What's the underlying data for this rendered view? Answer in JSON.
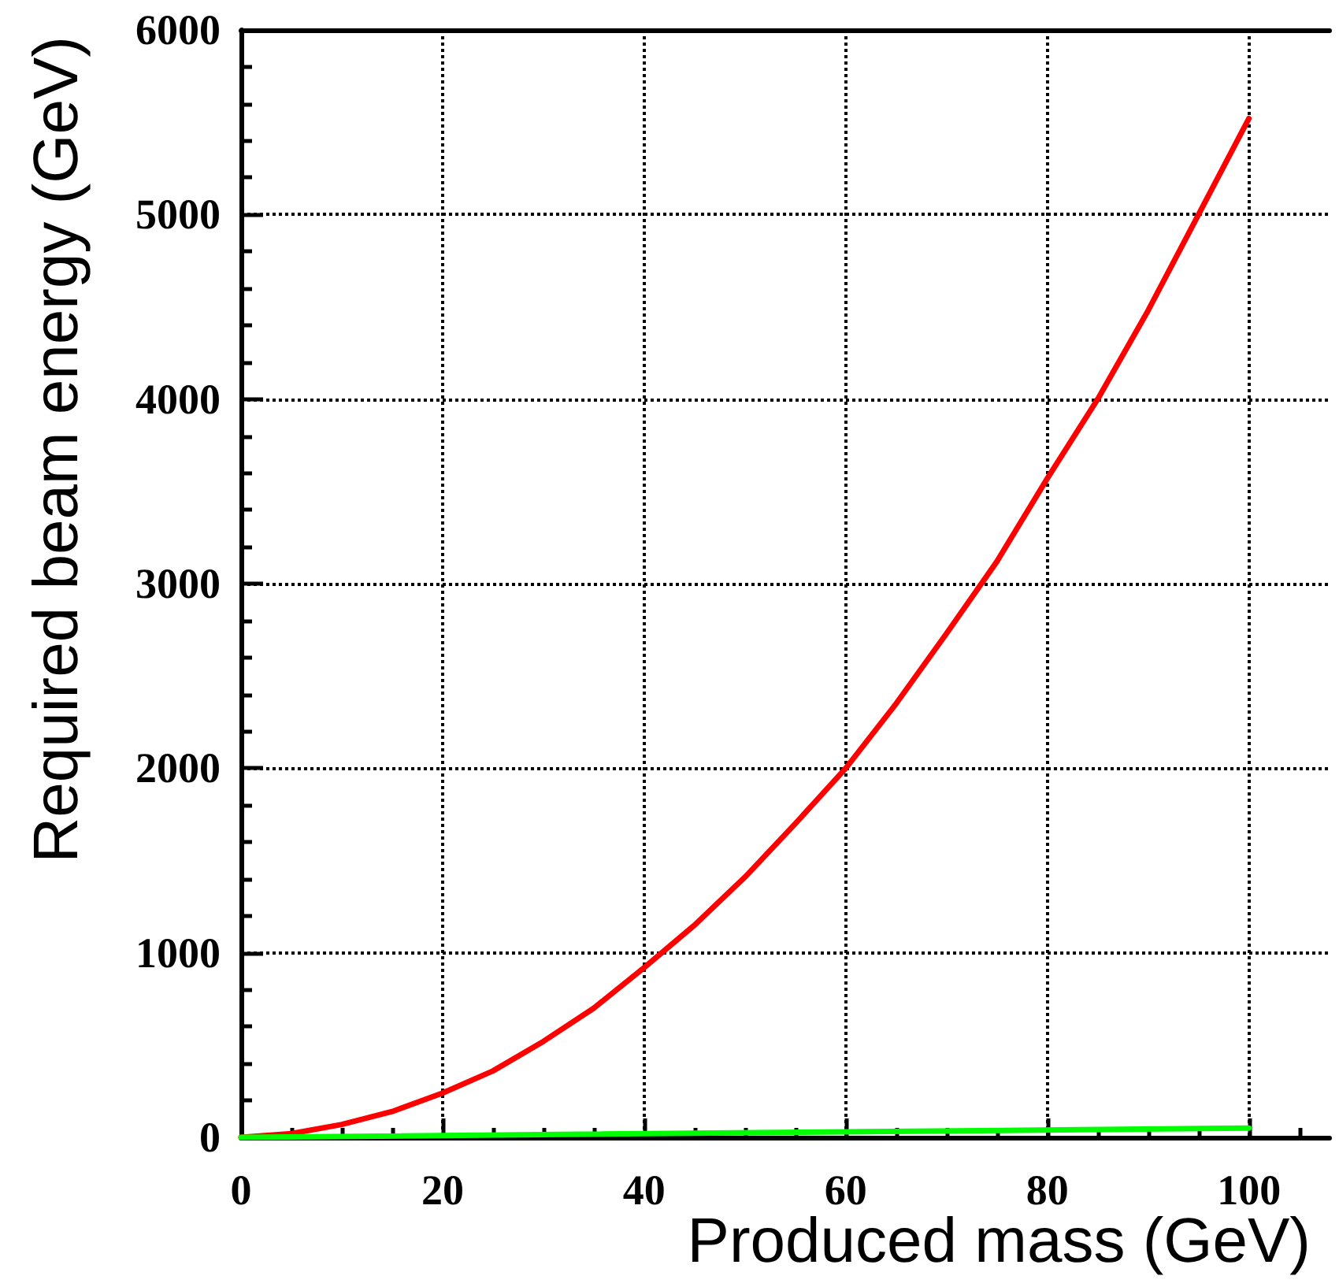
{
  "chart_data": {
    "type": "line",
    "xlabel": "Produced mass (GeV)",
    "ylabel": "Required beam energy (GeV)",
    "x": [
      0,
      5,
      10,
      15,
      20,
      25,
      30,
      35,
      40,
      45,
      50,
      55,
      60,
      65,
      70,
      75,
      80,
      85,
      90,
      95,
      100
    ],
    "series": [
      {
        "color": "#ff0000",
        "values": [
          0,
          20,
          70,
          140,
          240,
          360,
          520,
          700,
          920,
          1150,
          1410,
          1700,
          2000,
          2350,
          2730,
          3120,
          3570,
          4000,
          4480,
          5000,
          5520
        ]
      },
      {
        "color": "#00ff00",
        "x": [
          0,
          100
        ],
        "values": [
          0,
          50
        ]
      }
    ],
    "xlim": [
      0,
      108
    ],
    "xticks": [
      0,
      20,
      40,
      60,
      80,
      100
    ],
    "ylim": [
      0,
      6000
    ],
    "yticks": [
      0,
      1000,
      2000,
      3000,
      4000,
      5000,
      6000
    ],
    "grid": true,
    "marker": "none",
    "line_style": "solid"
  }
}
